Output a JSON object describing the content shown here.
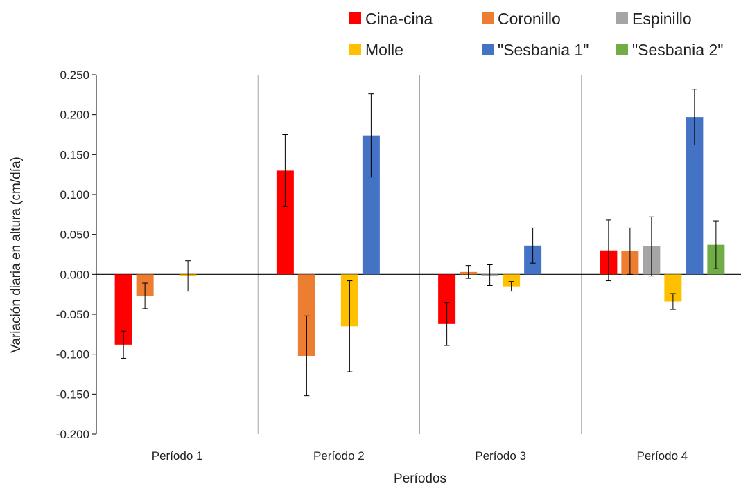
{
  "chart_data": {
    "type": "bar",
    "title": "",
    "xlabel": "Períodos",
    "ylabel": "Variación diaria en altura (cm/día)",
    "ylim": [
      -0.2,
      0.25
    ],
    "yticks": [
      0.25,
      0.2,
      0.15,
      0.1,
      0.05,
      0.0,
      -0.05,
      -0.1,
      -0.15,
      -0.2
    ],
    "ytick_labels": [
      "0.250",
      "0.200",
      "0.150",
      "0.100",
      "0.050",
      "0.000",
      "-0.050",
      "-0.100",
      "-0.150",
      "-0.200"
    ],
    "categories": [
      "Período 1",
      "Período 2",
      "Período 3",
      "Período 4"
    ],
    "legend_position": "top",
    "grid": false,
    "category_separators": true,
    "error_bars": true,
    "series": [
      {
        "name": "Cina-cina",
        "color": "#ff0000",
        "values": [
          -0.088,
          0.13,
          -0.062,
          0.03
        ],
        "errors": [
          0.017,
          0.045,
          0.027,
          0.038
        ]
      },
      {
        "name": "Coronillo",
        "color": "#ed7d31",
        "values": [
          -0.027,
          -0.102,
          0.003,
          0.029
        ],
        "errors": [
          0.016,
          0.05,
          0.008,
          0.029
        ]
      },
      {
        "name": "Espinillo",
        "color": "#a5a5a5",
        "values": [
          null,
          null,
          -0.001,
          0.035
        ],
        "errors": [
          null,
          null,
          0.013,
          0.037
        ]
      },
      {
        "name": "Molle",
        "color": "#ffc000",
        "values": [
          -0.002,
          -0.065,
          -0.015,
          -0.034
        ],
        "errors": [
          0.019,
          0.057,
          0.006,
          0.01
        ]
      },
      {
        "name": "\"Sesbania 1\"",
        "color": "#4472c4",
        "values": [
          null,
          0.174,
          0.036,
          0.197
        ],
        "errors": [
          null,
          0.052,
          0.022,
          0.035
        ]
      },
      {
        "name": "\"Sesbania 2\"",
        "color": "#70ad47",
        "values": [
          null,
          null,
          null,
          0.037
        ],
        "errors": [
          null,
          null,
          null,
          0.03
        ]
      }
    ]
  }
}
